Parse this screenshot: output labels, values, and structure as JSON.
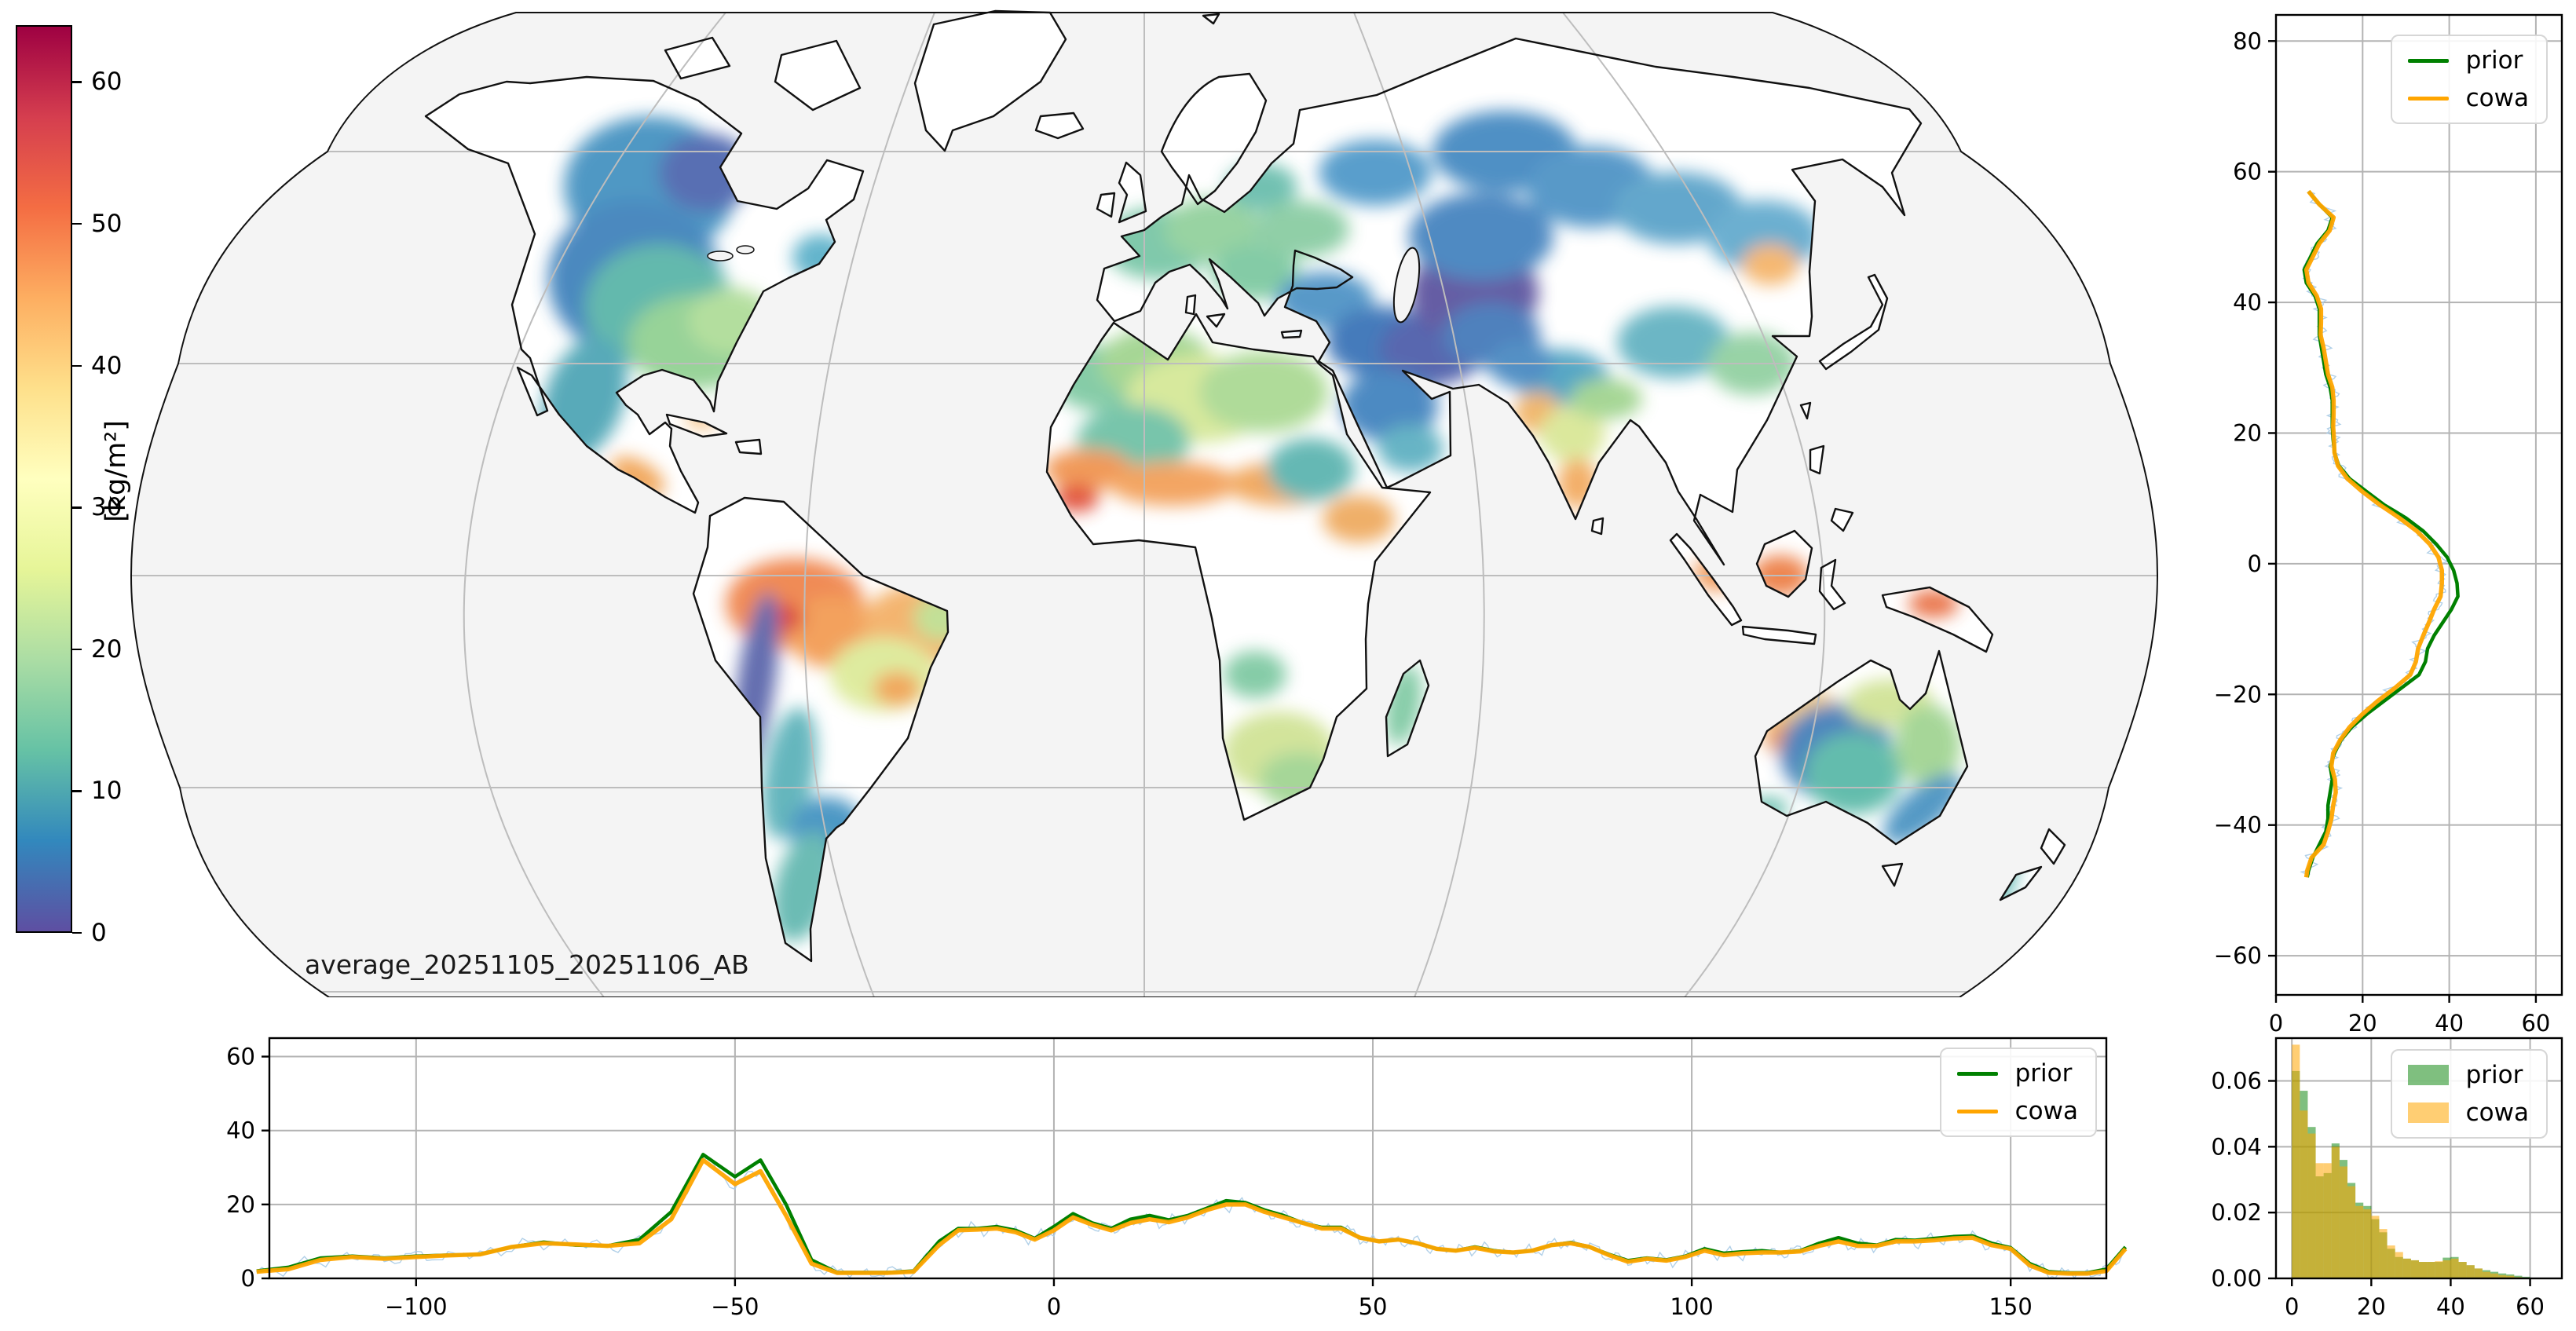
{
  "figure": {
    "kind": "satellite water-vapour retrieval summary figure",
    "background": "#ffffff"
  },
  "map": {
    "annotation": "average_20251105_20251106_AB",
    "projection": "Robinson-like world map, data over land only",
    "ocean_color": "#f4f4f4",
    "land_color": "#ffffff",
    "coast_color": "#111111",
    "graticule_color": "#bdbdbd",
    "data_blobs": [
      [
        621,
        230,
        110,
        90,
        0,
        "#3f8fbf"
      ],
      [
        692,
        212,
        60,
        50,
        0,
        "#4a63ad"
      ],
      [
        601,
        347,
        110,
        100,
        0,
        "#3a7fba"
      ],
      [
        633,
        383,
        95,
        80,
        0,
        "#56b3a6"
      ],
      [
        678,
        428,
        85,
        60,
        0,
        "#8ecf8f"
      ],
      [
        724,
        401,
        55,
        42,
        0,
        "#addc96"
      ],
      [
        537,
        500,
        50,
        82,
        20,
        "#4aa3b3"
      ],
      [
        838,
        320,
        36,
        30,
        0,
        "#56aec8"
      ],
      [
        605,
        599,
        38,
        20,
        30,
        "#f0a050"
      ],
      [
        685,
        527,
        20,
        9,
        10,
        "#f3b060"
      ],
      [
        805,
        761,
        88,
        58,
        0,
        "#ef8147"
      ],
      [
        856,
        797,
        62,
        46,
        0,
        "#f2994f"
      ],
      [
        791,
        779,
        26,
        19,
        0,
        "#d94030"
      ],
      [
        963,
        788,
        72,
        52,
        0,
        "#f3ae63"
      ],
      [
        992,
        779,
        36,
        30,
        0,
        "#bede8e"
      ],
      [
        918,
        851,
        68,
        47,
        0,
        "#dcea97"
      ],
      [
        935,
        869,
        30,
        22,
        0,
        "#f0a050"
      ],
      [
        756,
        860,
        24,
        115,
        8,
        "#5560a8"
      ],
      [
        798,
        977,
        32,
        85,
        10,
        "#58b0b8"
      ],
      [
        846,
        1049,
        48,
        42,
        0,
        "#3e8fc0"
      ],
      [
        816,
        1121,
        36,
        72,
        15,
        "#5fb6ae"
      ],
      [
        1269,
        302,
        72,
        46,
        0,
        "#74c5a4"
      ],
      [
        1337,
        284,
        62,
        40,
        0,
        "#8fcf9a"
      ],
      [
        1391,
        338,
        56,
        36,
        0,
        "#79c79e"
      ],
      [
        1399,
        230,
        46,
        30,
        0,
        "#66bcab"
      ],
      [
        1449,
        284,
        62,
        36,
        0,
        "#86cba0"
      ],
      [
        1193,
        473,
        62,
        42,
        0,
        "#7cc8a0"
      ],
      [
        1264,
        455,
        72,
        46,
        0,
        "#9ed38c"
      ],
      [
        1319,
        500,
        92,
        56,
        0,
        "#d4e795"
      ],
      [
        1402,
        491,
        82,
        52,
        0,
        "#a8d890"
      ],
      [
        1236,
        554,
        72,
        46,
        0,
        "#6cc0a4"
      ],
      [
        1179,
        590,
        56,
        26,
        0,
        "#f0914c"
      ],
      [
        1164,
        626,
        28,
        18,
        0,
        "#e04a33"
      ],
      [
        1286,
        608,
        82,
        28,
        0,
        "#f29d55"
      ],
      [
        1427,
        608,
        72,
        28,
        0,
        "#f0a355"
      ],
      [
        1462,
        590,
        56,
        40,
        0,
        "#58b2ae"
      ],
      [
        1523,
        653,
        46,
        30,
        0,
        "#eea85c"
      ],
      [
        1422,
        950,
        72,
        52,
        0,
        "#cfe293"
      ],
      [
        1448,
        986,
        52,
        36,
        0,
        "#9ed38f"
      ],
      [
        1391,
        851,
        40,
        30,
        0,
        "#7cc8a0"
      ],
      [
        1580,
        890,
        22,
        52,
        10,
        "#7cc8a0"
      ],
      [
        1480,
        374,
        62,
        36,
        0,
        "#4a90c4"
      ],
      [
        1554,
        428,
        72,
        46,
        0,
        "#3570b5"
      ],
      [
        1616,
        437,
        66,
        46,
        0,
        "#4a5aa8"
      ],
      [
        1670,
        365,
        82,
        62,
        0,
        "#584f9c"
      ],
      [
        1679,
        293,
        92,
        56,
        0,
        "#4080bd"
      ],
      [
        1692,
        419,
        62,
        42,
        0,
        "#4076b8"
      ],
      [
        1562,
        509,
        62,
        46,
        0,
        "#3c80bd"
      ],
      [
        1589,
        563,
        42,
        30,
        0,
        "#5aaec0"
      ],
      [
        1544,
        212,
        72,
        42,
        0,
        "#4c96c8"
      ],
      [
        1709,
        185,
        92,
        52,
        0,
        "#3f86c0"
      ],
      [
        1819,
        230,
        82,
        52,
        0,
        "#4a90c4"
      ],
      [
        1929,
        257,
        82,
        46,
        0,
        "#57a0c8"
      ],
      [
        2039,
        293,
        72,
        46,
        0,
        "#5fa8cc"
      ],
      [
        1780,
        473,
        62,
        36,
        0,
        "#49a0c0"
      ],
      [
        1729,
        455,
        42,
        30,
        0,
        "#4586c0"
      ],
      [
        1751,
        518,
        30,
        26,
        0,
        "#f0b060"
      ],
      [
        1795,
        545,
        42,
        36,
        0,
        "#d8e694"
      ],
      [
        1802,
        608,
        26,
        32,
        0,
        "#f2a85c"
      ],
      [
        1838,
        500,
        46,
        26,
        0,
        "#9ed38c"
      ],
      [
        1924,
        428,
        72,
        46,
        0,
        "#5fb0c0"
      ],
      [
        2024,
        455,
        56,
        40,
        0,
        "#8fcf9f"
      ],
      [
        2047,
        329,
        36,
        26,
        0,
        "#f4b266"
      ],
      [
        1974,
        725,
        26,
        18,
        30,
        "#f0924e"
      ],
      [
        2060,
        725,
        36,
        26,
        0,
        "#ec7a40"
      ],
      [
        2255,
        761,
        32,
        18,
        0,
        "#e86a3c"
      ],
      [
        2089,
        905,
        52,
        36,
        0,
        "#f3c97c"
      ],
      [
        2065,
        932,
        26,
        20,
        0,
        "#ef9850"
      ],
      [
        2131,
        950,
        72,
        62,
        0,
        "#3f7cb8"
      ],
      [
        2153,
        977,
        62,
        52,
        0,
        "#57b7a6"
      ],
      [
        2199,
        887,
        56,
        30,
        0,
        "#cfe293"
      ],
      [
        2248,
        941,
        42,
        52,
        0,
        "#9ed38f"
      ],
      [
        2241,
        1022,
        62,
        26,
        -40,
        "#4590c0"
      ],
      [
        2044,
        1022,
        26,
        16,
        0,
        "#6cc0b0"
      ],
      [
        2340,
        1115,
        18,
        42,
        20,
        "#5ab5b0"
      ]
    ]
  },
  "colorbar": {
    "label": "[kg/m²]",
    "vmin": 0,
    "vmax": 64,
    "ticks": [
      0,
      10,
      20,
      30,
      40,
      50,
      60
    ],
    "tick_labels": [
      "0",
      "10",
      "20",
      "30",
      "40",
      "50",
      "60"
    ],
    "colormap": "Spectral_r",
    "stops": [
      "#5e4fa2",
      "#3288bd",
      "#66c2a5",
      "#abdda4",
      "#e6f598",
      "#ffffbf",
      "#fee08b",
      "#fdae61",
      "#f46d43",
      "#d53e4f",
      "#9e0142"
    ]
  },
  "colors": {
    "prior": "#008000",
    "cowa": "#ffa500",
    "raw": "#a9cbe5",
    "grid": "#b3b3b3",
    "spine": "#000000",
    "hist_prior_fill": "rgba(0,128,0,0.5)",
    "hist_cowa_fill": "rgba(255,165,0,0.55)"
  },
  "legend": {
    "prior_label": "prior",
    "cowa_label": "cowa"
  },
  "chart_data": [
    {
      "id": "latitude_profile",
      "type": "line",
      "description": "mean water vapour value (x) versus latitude (y), right-hand panel",
      "xlim": [
        0,
        66
      ],
      "ylim": [
        -66,
        84
      ],
      "xticks": [
        0,
        20,
        40,
        60
      ],
      "xtick_labels": [
        "0",
        "20",
        "40",
        "60"
      ],
      "yticks": [
        80,
        60,
        40,
        20,
        0,
        -20,
        -40,
        -60
      ],
      "ytick_labels": [
        "80",
        "60",
        "40",
        "20",
        "0",
        "−20",
        "−40",
        "−60"
      ],
      "grid": true,
      "legend_position": "upper right",
      "lat": [
        57,
        55,
        53,
        51,
        49,
        47,
        45,
        43,
        41,
        39,
        37,
        35,
        33,
        31,
        29,
        27,
        25,
        23,
        21,
        19,
        17,
        15,
        13,
        11,
        9,
        7,
        5,
        3,
        1,
        -1,
        -3,
        -5,
        -7,
        -9,
        -11,
        -13,
        -15,
        -17,
        -19,
        -21,
        -23,
        -25,
        -27,
        -29,
        -31,
        -33,
        -35,
        -37,
        -39,
        -41,
        -43,
        -45,
        -47,
        -48
      ],
      "series": [
        {
          "name": "prior",
          "values": [
            7.5,
            10,
            13,
            12,
            9.5,
            8,
            6.5,
            7,
            9,
            10,
            10,
            10,
            10.5,
            11,
            11.5,
            12.5,
            13,
            13,
            13,
            13.2,
            13.5,
            14.5,
            17,
            21,
            25,
            30,
            34,
            37,
            39.5,
            41,
            41.8,
            42,
            40.5,
            38.5,
            36.5,
            35,
            34.5,
            33,
            29,
            25,
            21,
            17.5,
            15,
            13.5,
            12.5,
            13,
            12.5,
            12,
            12,
            11.5,
            10,
            8.5,
            7.5,
            7.2
          ]
        },
        {
          "name": "cowa",
          "values": [
            7.5,
            10,
            13.3,
            12.4,
            10,
            8.5,
            7,
            7.5,
            9.4,
            10.4,
            10.4,
            10.3,
            11,
            11.5,
            12,
            13,
            13.3,
            13.3,
            13.2,
            13.4,
            13.5,
            14.3,
            16.5,
            20,
            24,
            28.5,
            32.5,
            35.5,
            37.5,
            38.3,
            38.3,
            38,
            36.5,
            35.3,
            34,
            32.8,
            32.3,
            31,
            27.5,
            23.5,
            20,
            17,
            14.8,
            13.2,
            12.8,
            13.6,
            13.8,
            13.2,
            12.8,
            12,
            11,
            8.2,
            7.2,
            7
          ]
        }
      ]
    },
    {
      "id": "longitude_profile",
      "type": "line",
      "description": "mean water vapour value (y) versus longitude (x), bottom panel",
      "xlim": [
        -123,
        165
      ],
      "ylim": [
        0,
        65
      ],
      "xticks": [
        -100,
        -50,
        0,
        50,
        100,
        150
      ],
      "xtick_labels": [
        "−100",
        "−50",
        "0",
        "50",
        "100",
        "150"
      ],
      "yticks": [
        0,
        20,
        40,
        60
      ],
      "ytick_labels": [
        "0",
        "20",
        "40",
        "60"
      ],
      "grid": true,
      "legend_position": "upper right",
      "x": [
        -125,
        -120,
        -115,
        -110,
        -105,
        -100,
        -95,
        -90,
        -85,
        -80,
        -75,
        -70,
        -65,
        -60,
        -55,
        -50,
        -46,
        -42,
        -38,
        -34,
        -30,
        -26,
        -22,
        -18,
        -15,
        -12,
        -9,
        -6,
        -3,
        0,
        3,
        6,
        9,
        12,
        15,
        18,
        21,
        24,
        27,
        30,
        33,
        36,
        39,
        42,
        45,
        48,
        51,
        54,
        57,
        60,
        63,
        66,
        69,
        72,
        75,
        78,
        81,
        84,
        87,
        90,
        93,
        96,
        99,
        102,
        105,
        108,
        111,
        114,
        117,
        120,
        123,
        126,
        129,
        132,
        135,
        138,
        141,
        144,
        147,
        150,
        153,
        156,
        159,
        162,
        165,
        168
      ],
      "series": [
        {
          "name": "prior",
          "values": [
            2,
            3,
            5.5,
            6,
            5.5,
            6,
            6.3,
            6.5,
            8.5,
            9.8,
            9,
            8.8,
            10.5,
            18,
            33.5,
            27.5,
            32,
            20,
            5,
            1.6,
            1.6,
            1.6,
            2,
            10,
            13.5,
            13.5,
            14,
            13,
            10.8,
            14,
            17.5,
            15,
            13.5,
            16,
            17,
            15.8,
            17,
            19,
            21,
            20.5,
            18.5,
            17,
            15,
            13.8,
            13.8,
            11,
            10,
            10.5,
            9.5,
            8,
            7.5,
            8.5,
            7.5,
            7,
            7.5,
            9,
            9.7,
            8.5,
            6.5,
            4.8,
            5.5,
            5,
            6,
            8,
            6.8,
            7.2,
            7.5,
            7,
            7.5,
            9.5,
            11,
            9.5,
            9,
            10.5,
            10.3,
            10.8,
            11.3,
            11.5,
            9.5,
            8.3,
            4,
            1.8,
            1.5,
            1.5,
            2.5,
            8.5
          ]
        },
        {
          "name": "cowa",
          "values": [
            1.8,
            2.5,
            5,
            5.8,
            5.3,
            5.8,
            6.2,
            6.5,
            8.5,
            9.5,
            9.2,
            8.8,
            9.5,
            16,
            32,
            25.5,
            29,
            17,
            4,
            1.5,
            1.5,
            1.5,
            1.8,
            9,
            13,
            13.2,
            13.5,
            12.5,
            10.5,
            13,
            16.5,
            14.5,
            13,
            15,
            16,
            15.2,
            16.5,
            18.5,
            20,
            20,
            18,
            16.5,
            15,
            13.5,
            13.5,
            11,
            10,
            10.5,
            9.5,
            8,
            7.5,
            8.3,
            7.3,
            7,
            7.5,
            9,
            9.5,
            8.5,
            6.3,
            4.5,
            5.3,
            4.8,
            5.8,
            7.5,
            6.3,
            6.8,
            7,
            7,
            7.3,
            8.8,
            10,
            8.8,
            8.8,
            10,
            10,
            10.3,
            10.8,
            11,
            9,
            8,
            3.5,
            1.5,
            1.3,
            1.3,
            2,
            8
          ]
        }
      ]
    },
    {
      "id": "value_histogram",
      "type": "bar",
      "description": "normalized histograms of water vapour values, overlapping prior (green) and cowa (orange)",
      "bin_start": 0,
      "bin_width": 2,
      "xlim": [
        -4,
        68
      ],
      "ylim": [
        0,
        0.073
      ],
      "xticks": [
        0,
        20,
        40,
        60
      ],
      "xtick_labels": [
        "0",
        "20",
        "40",
        "60"
      ],
      "yticks": [
        0,
        0.02,
        0.04,
        0.06
      ],
      "ytick_labels": [
        "0.00",
        "0.02",
        "0.04",
        "0.06"
      ],
      "grid": true,
      "legend_position": "upper right",
      "series": [
        {
          "name": "prior",
          "values": [
            0.063,
            0.057,
            0.046,
            0.031,
            0.032,
            0.041,
            0.036,
            0.029,
            0.023,
            0.022,
            0.018,
            0.014,
            0.009,
            0.0065,
            0.006,
            0.0055,
            0.005,
            0.005,
            0.005,
            0.0063,
            0.0065,
            0.005,
            0.004,
            0.003,
            0.0025,
            0.002,
            0.0015,
            0.0012,
            0.0008,
            0.0005
          ]
        },
        {
          "name": "cowa",
          "values": [
            0.071,
            0.051,
            0.044,
            0.035,
            0.035,
            0.04,
            0.034,
            0.028,
            0.022,
            0.021,
            0.019,
            0.015,
            0.01,
            0.008,
            0.006,
            0.0055,
            0.005,
            0.005,
            0.0052,
            0.0055,
            0.006,
            0.005,
            0.004,
            0.003,
            0.002,
            0.0015,
            0.001,
            0.0008,
            0.0004,
            0.0002
          ]
        }
      ]
    }
  ]
}
